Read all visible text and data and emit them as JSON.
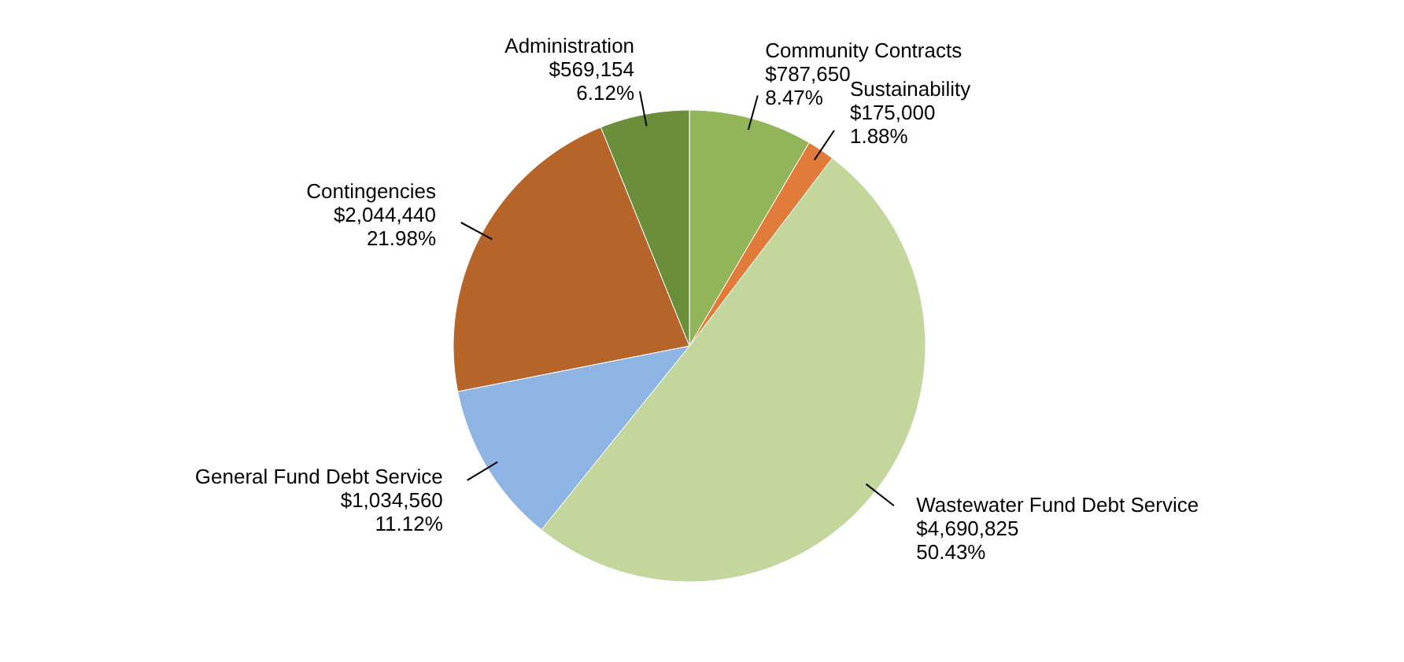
{
  "chart_data": {
    "type": "pie",
    "categories": [
      "Community Contracts",
      "Sustainability",
      "Wastewater Fund Debt Service",
      "General Fund Debt Service",
      "Contingencies",
      "Administration"
    ],
    "values": [
      787650,
      175000,
      4690825,
      1034560,
      2044440,
      569154
    ],
    "colors": [
      "#92b55a",
      "#e07b39",
      "#c3d69b",
      "#8eb4e3",
      "#b5642a",
      "#6b8e3a"
    ],
    "value_labels": [
      "$787,650\n8.47%",
      "$175,000\n1.88%",
      "$4,690,825\n50.43%",
      "$1,034,560\n11.12%",
      "$2,044,440\n21.98%",
      "$569,154\n6.12%"
    ]
  }
}
